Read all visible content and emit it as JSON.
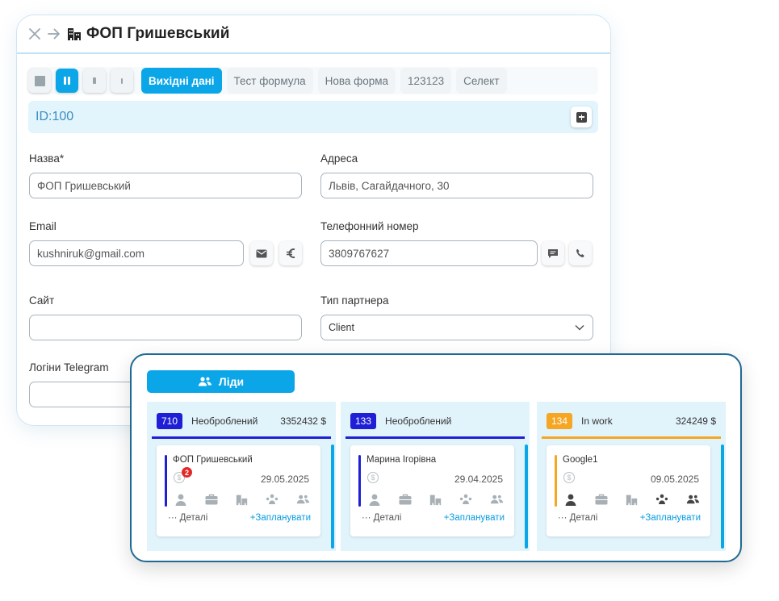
{
  "main_window": {
    "title": "ФОП Гришевський",
    "tabs": [
      "Вихідні дані",
      "Тест формула",
      "Нова форма",
      "123123",
      "Селект"
    ],
    "id_label": "ID:100",
    "fields": {
      "name": {
        "label": "Назва*",
        "value": "ФОП Гришевський"
      },
      "address": {
        "label": "Адреса",
        "value": "Львів, Сагайдачного, 30"
      },
      "email": {
        "label": "Email",
        "value": "kushniruk@gmail.com"
      },
      "phone": {
        "label": "Телефонний номер",
        "value": "3809767627"
      },
      "site": {
        "label": "Сайт",
        "value": ""
      },
      "partner_type": {
        "label": "Тип партнера",
        "value": "Client"
      },
      "telegram": {
        "label": "Логіни Telegram",
        "value": ""
      }
    }
  },
  "leads_panel": {
    "button_label": "Ліди",
    "columns": [
      {
        "count": "710",
        "status": "Необроблений",
        "sum": "3352432 $",
        "accent": "#1f1fd6",
        "card": {
          "name": "ФОП Гришевський",
          "date": "29.05.2025",
          "notification": "2",
          "details": "··· Деталі",
          "plan": "+Запланувати"
        }
      },
      {
        "count": "133",
        "status": "Необроблений",
        "sum": "",
        "accent": "#1f1fd6",
        "card": {
          "name": "Марина Ігорівна",
          "date": "29.04.2025",
          "details": "··· Деталі",
          "plan": "+Запланувати"
        }
      },
      {
        "count": "134",
        "status": "In work",
        "sum": "324249 $",
        "accent": "#f5a623",
        "card": {
          "name": "Google1",
          "date": "09.05.2025",
          "details": "··· Деталі",
          "plan": "+Запланувати"
        }
      }
    ]
  },
  "colors": {
    "primary": "#0aa6e8",
    "frame": "#1f6a93",
    "badge_blue": "#1f1fd6",
    "badge_orange": "#f5a623",
    "notification": "#e02a2a"
  }
}
